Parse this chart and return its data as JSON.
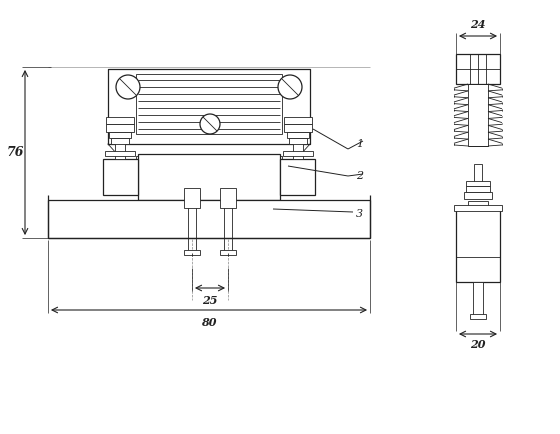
{
  "bg_color": "#ffffff",
  "line_color": "#222222",
  "dim_color": "#222222",
  "figsize": [
    5.6,
    4.34
  ],
  "dpi": 100,
  "dim_76_label": "76",
  "dim_25_label": "25",
  "dim_80_label": "80",
  "dim_24_label": "24",
  "dim_20_label": "20",
  "label_1": "1",
  "label_2": "2",
  "label_3": "3"
}
